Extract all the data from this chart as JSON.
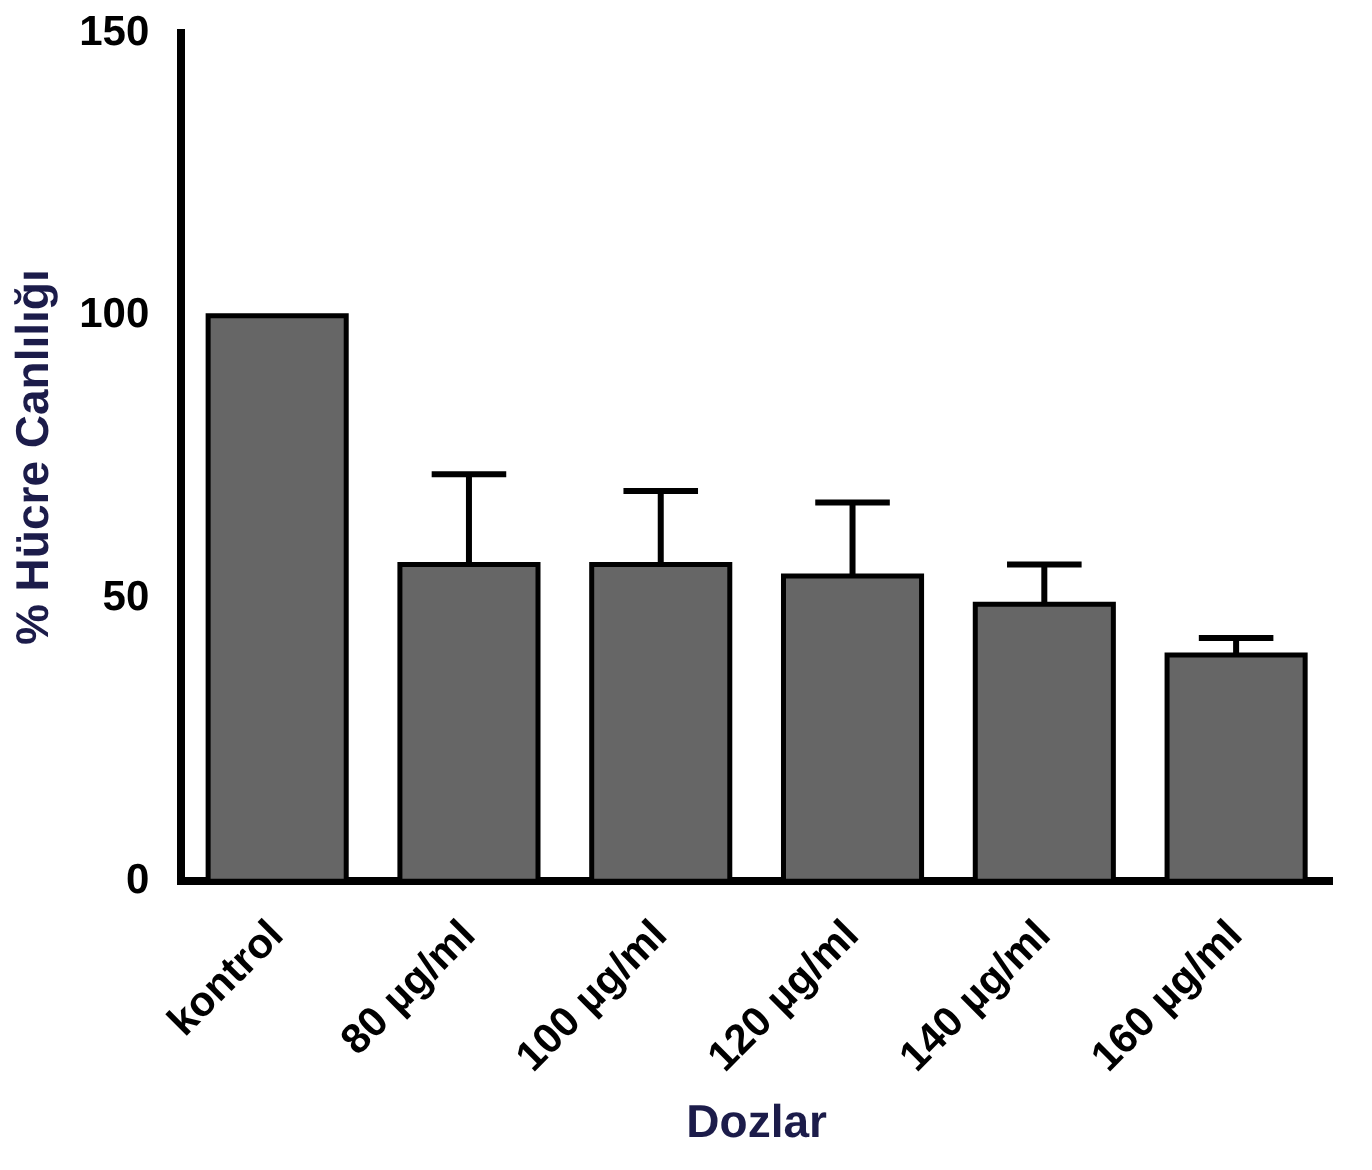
{
  "chart_data": {
    "type": "bar",
    "xlabel": "Dozlar",
    "ylabel": "% Hücre Canlılığı",
    "categories": [
      "kontrol",
      "80 µg/ml",
      "100 µg/ml",
      "120 µg/ml",
      "140 µg/ml",
      "160 µg/ml"
    ],
    "values": [
      100,
      56,
      56,
      54,
      49,
      40
    ],
    "errors": [
      null,
      [
        56,
        72
      ],
      [
        56,
        69
      ],
      [
        54,
        67
      ],
      [
        49,
        56
      ],
      [
        40,
        43
      ]
    ],
    "color": "#666666",
    "ylim": [
      0,
      150
    ],
    "yticks": [
      0,
      50,
      100,
      150
    ],
    "grid": false,
    "legend": false
  }
}
